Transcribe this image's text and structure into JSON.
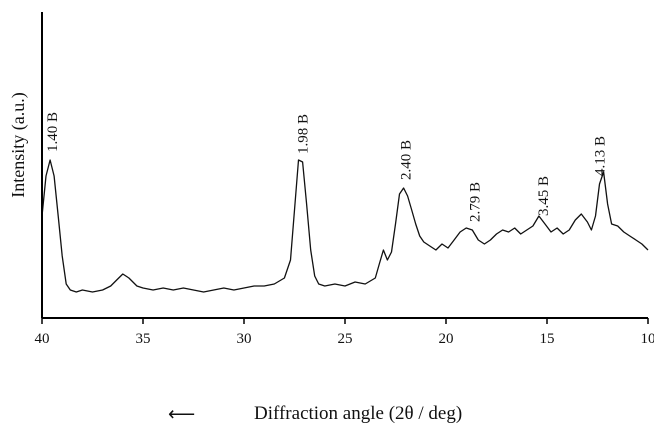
{
  "chart_data": {
    "type": "line",
    "title": "",
    "xlabel": "Diffraction angle (2θ / deg)",
    "xlabel_arrow": "⟵",
    "ylabel": "Intensity (a.u.)",
    "xlim": [
      40,
      10
    ],
    "x_reversed": true,
    "xticks": [
      40,
      35,
      30,
      25,
      20,
      15,
      10
    ],
    "grid": false,
    "series": [
      {
        "x": [
          40.0,
          39.8,
          39.6,
          39.4,
          39.2,
          39.0,
          38.8,
          38.6,
          38.3,
          38.0,
          37.5,
          37.0,
          36.6,
          36.3,
          36.0,
          35.7,
          35.3,
          35.0,
          34.5,
          34.0,
          33.5,
          33.0,
          32.5,
          32.0,
          31.5,
          31.0,
          30.5,
          30.0,
          29.5,
          29.0,
          28.5,
          28.0,
          27.7,
          27.5,
          27.3,
          27.1,
          26.9,
          26.7,
          26.5,
          26.3,
          26.0,
          25.5,
          25.0,
          24.5,
          24.0,
          23.5,
          23.3,
          23.1,
          22.9,
          22.7,
          22.5,
          22.3,
          22.1,
          21.9,
          21.7,
          21.5,
          21.3,
          21.1,
          20.8,
          20.5,
          20.2,
          19.9,
          19.6,
          19.3,
          19.0,
          18.7,
          18.4,
          18.1,
          17.8,
          17.5,
          17.2,
          16.9,
          16.6,
          16.3,
          16.0,
          15.7,
          15.4,
          15.1,
          14.8,
          14.5,
          14.2,
          13.9,
          13.6,
          13.3,
          13.0,
          12.8,
          12.6,
          12.4,
          12.2,
          12.0,
          11.8,
          11.5,
          11.2,
          10.9,
          10.6,
          10.3,
          10.0
        ],
        "y": [
          0.42,
          0.62,
          0.7,
          0.62,
          0.42,
          0.22,
          0.08,
          0.05,
          0.04,
          0.05,
          0.04,
          0.05,
          0.07,
          0.1,
          0.13,
          0.11,
          0.07,
          0.06,
          0.05,
          0.06,
          0.05,
          0.06,
          0.05,
          0.04,
          0.05,
          0.06,
          0.05,
          0.06,
          0.07,
          0.07,
          0.08,
          0.11,
          0.2,
          0.45,
          0.7,
          0.69,
          0.48,
          0.25,
          0.12,
          0.08,
          0.07,
          0.08,
          0.07,
          0.09,
          0.08,
          0.11,
          0.18,
          0.25,
          0.2,
          0.24,
          0.38,
          0.53,
          0.56,
          0.52,
          0.45,
          0.38,
          0.32,
          0.29,
          0.27,
          0.25,
          0.28,
          0.26,
          0.3,
          0.34,
          0.36,
          0.35,
          0.3,
          0.28,
          0.3,
          0.33,
          0.35,
          0.34,
          0.36,
          0.33,
          0.35,
          0.37,
          0.42,
          0.38,
          0.34,
          0.36,
          0.33,
          0.35,
          0.4,
          0.43,
          0.39,
          0.35,
          0.42,
          0.58,
          0.64,
          0.48,
          0.38,
          0.37,
          0.34,
          0.32,
          0.3,
          0.28,
          0.25
        ]
      }
    ],
    "annotations": [
      {
        "x": 39.5,
        "text": "1.40 B"
      },
      {
        "x": 27.1,
        "text": "1.98 B"
      },
      {
        "x": 22.0,
        "text": "2.40 B"
      },
      {
        "x": 18.6,
        "text": "2.79 B"
      },
      {
        "x": 15.2,
        "text": "3.45 B"
      },
      {
        "x": 12.4,
        "text": "4.13 B"
      }
    ]
  }
}
